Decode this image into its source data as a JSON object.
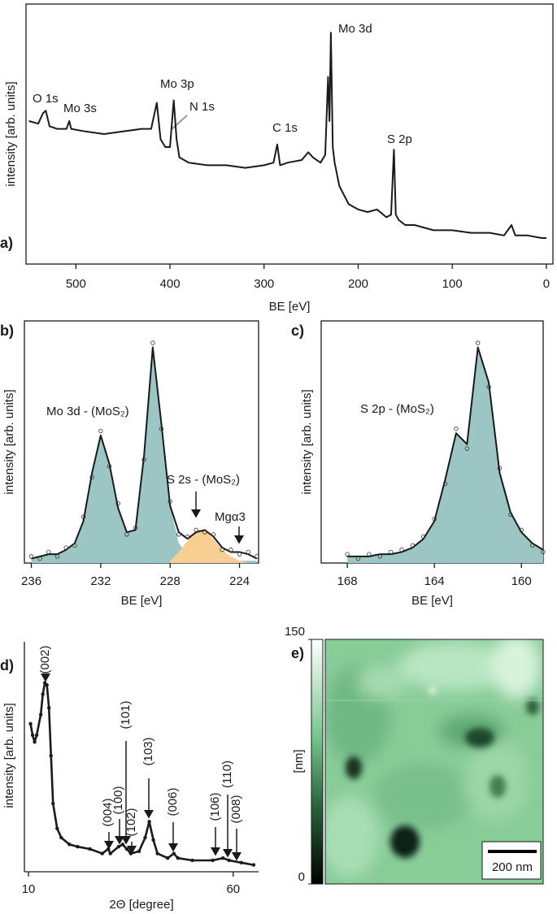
{
  "chart_data": [
    {
      "type": "line",
      "label": "a)",
      "xlabel": "BE [eV]",
      "ylabel": "intensity [arb. units]",
      "frame": "box",
      "xlim": [
        553,
        -7
      ],
      "ylim": [
        0,
        100
      ],
      "xticks": [
        500,
        400,
        300,
        200,
        100,
        0
      ],
      "x": [
        550,
        540,
        535,
        532,
        528,
        520,
        510,
        507,
        505,
        490,
        470,
        450,
        430,
        420,
        414,
        410,
        405,
        400,
        396,
        393,
        390,
        380,
        360,
        340,
        320,
        300,
        290,
        286,
        283,
        275,
        260,
        253,
        248,
        240,
        235,
        232,
        230.5,
        229,
        227,
        225,
        220,
        210,
        200,
        190,
        180,
        170,
        165,
        162,
        160,
        157,
        150,
        140,
        120,
        100,
        80,
        60,
        45,
        37,
        33,
        20,
        5,
        0
      ],
      "series": [
        {
          "color": "#1a1a1a",
          "style": "line",
          "values": [
            55,
            54,
            58,
            59,
            53,
            52,
            52,
            55,
            52,
            51,
            50,
            51,
            52,
            52,
            62,
            48,
            45,
            45,
            63,
            48,
            41,
            39,
            38,
            38,
            37,
            38,
            39,
            46,
            38,
            39,
            40,
            43,
            41,
            39,
            42,
            72,
            55,
            89,
            45,
            39,
            30,
            23,
            21,
            20,
            21,
            18,
            19,
            44,
            19,
            17,
            15,
            15,
            13,
            13,
            12,
            12,
            11,
            15,
            11,
            11,
            10,
            10
          ]
        }
      ],
      "annotations": [
        "O 1s",
        "Mo 3s",
        "Mo 3p",
        "N 1s",
        "C 1s",
        "Mo 3d",
        "S 2p"
      ]
    },
    {
      "type": "line",
      "label": "b)",
      "xlabel": "BE [eV]",
      "ylabel": "intensity [arb. units]",
      "frame": "box",
      "xlim": [
        236.4,
        222.9
      ],
      "ylim": [
        0,
        110
      ],
      "xticks": [
        236,
        232,
        228,
        224
      ],
      "x": [
        236,
        235.5,
        235,
        234.5,
        234,
        233.5,
        233,
        232.5,
        232,
        231.5,
        231,
        230.5,
        230,
        229.5,
        229,
        228.5,
        228,
        227.5,
        227,
        226.5,
        226,
        225.5,
        225,
        224.5,
        224,
        223.5,
        223
      ],
      "series": [
        {
          "color": "#9cc6c3",
          "style": "area",
          "values": [
            2,
            3,
            4,
            4,
            6,
            9,
            19,
            41,
            58,
            45,
            25,
            14,
            15,
            49,
            98,
            63,
            26,
            9,
            4,
            3,
            2,
            2,
            1,
            1,
            1,
            1,
            1
          ]
        },
        {
          "color": "#f7cf92",
          "style": "area",
          "values": [
            null,
            null,
            null,
            null,
            null,
            null,
            null,
            null,
            null,
            null,
            null,
            null,
            null,
            null,
            null,
            null,
            1,
            5,
            10,
            15,
            15,
            11,
            6,
            3,
            1,
            0,
            0
          ]
        },
        {
          "color": "#1a1a1a",
          "style": "line",
          "values": [
            2,
            3,
            4,
            4,
            6,
            9,
            19,
            41,
            58,
            45,
            25,
            14,
            15,
            49,
            98,
            63,
            26,
            14,
            11,
            14,
            15,
            12,
            7,
            5,
            5,
            4,
            2
          ]
        },
        {
          "color": "#333333",
          "style": "points",
          "values": [
            3,
            2,
            5,
            3,
            7,
            8,
            21,
            39,
            60,
            44,
            27,
            13,
            16,
            47,
            100,
            61,
            28,
            13,
            12,
            15,
            14,
            13,
            6,
            6,
            4,
            5,
            3
          ]
        }
      ],
      "annotations": [
        "Mo 3d - (MoS₂)",
        "S 2s - (MoS₂)",
        "Mgα3"
      ]
    },
    {
      "type": "line",
      "label": "c)",
      "xlabel": "BE [eV]",
      "ylabel": "intensity [arb. units]",
      "frame": "box",
      "xlim": [
        169.2,
        159
      ],
      "ylim": [
        0,
        110
      ],
      "xticks": [
        168,
        164,
        160
      ],
      "x": [
        168,
        167.5,
        167,
        166.5,
        166,
        165.5,
        165,
        164.5,
        164,
        163.5,
        163,
        162.5,
        162,
        161.5,
        161,
        160.5,
        160,
        159.5,
        159
      ],
      "series": [
        {
          "color": "#9cc6c3",
          "style": "area",
          "values": [
            3,
            3,
            3,
            4,
            4,
            5,
            7,
            11,
            19,
            38,
            59,
            54,
            98,
            82,
            41,
            23,
            14,
            9,
            6
          ]
        },
        {
          "color": "#1a1a1a",
          "style": "line",
          "values": [
            3,
            3,
            3,
            4,
            4,
            5,
            7,
            11,
            19,
            38,
            59,
            54,
            98,
            82,
            41,
            23,
            14,
            9,
            6
          ]
        },
        {
          "color": "#333333",
          "style": "points",
          "values": [
            4,
            2,
            4,
            3,
            5,
            6,
            8,
            12,
            20,
            36,
            61,
            52,
            100,
            80,
            43,
            22,
            15,
            8,
            5
          ]
        }
      ],
      "annotations": [
        "S 2p - (MoS₂)"
      ]
    },
    {
      "type": "line",
      "label": "d)",
      "xlabel": "2Θ [degree]",
      "ylabel": "intensity [arb. units]",
      "frame": "axes",
      "xlim": [
        9,
        66.2
      ],
      "ylim": [
        -1,
        100
      ],
      "xticks": [
        10,
        60
      ],
      "x": [
        10.5,
        11,
        11.5,
        12,
        13,
        13.5,
        14,
        14.5,
        15,
        15.5,
        16,
        17,
        18,
        20,
        22,
        25,
        28,
        29.5,
        30,
        32,
        33,
        34,
        35,
        37,
        38.5,
        39.5,
        40.5,
        41.5,
        44,
        45.5,
        46.5,
        50,
        55,
        57.5,
        59,
        62,
        65
      ],
      "series": [
        {
          "color": "#1a1a1a",
          "style": "line-dots",
          "values": [
            64,
            59,
            56,
            59,
            68,
            77,
            82,
            81,
            71,
            50,
            29,
            18,
            14,
            11,
            10,
            9,
            7,
            9,
            7,
            10,
            11,
            9,
            7,
            8,
            14,
            21,
            13,
            7,
            5,
            7,
            5,
            4,
            4,
            5,
            4,
            3,
            2
          ]
        }
      ],
      "annotations": [
        "(002)",
        "(004)",
        "(100)",
        "(101)",
        "(102)",
        "(103)",
        "(006)",
        "(106)",
        "(110)",
        "(008)"
      ]
    },
    {
      "type": "image",
      "label": "e)",
      "colorbar": {
        "label": "[nm]",
        "lim": [
          0,
          150
        ],
        "ticks": [
          0,
          150
        ]
      },
      "scalebar": "200 nm"
    }
  ]
}
